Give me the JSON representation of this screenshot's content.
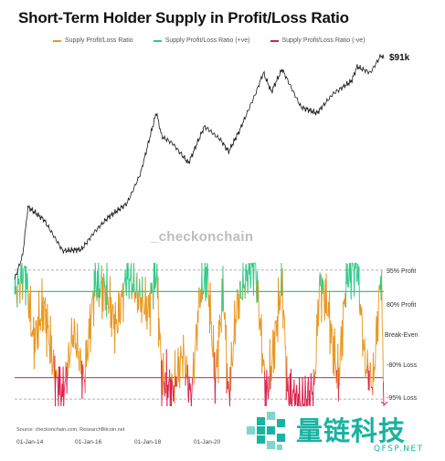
{
  "chart_data": {
    "type": "line",
    "title": "Short-Term Holder Supply in Profit/Loss Ratio",
    "legend": [
      {
        "name": "Supply Profit/Loss Ratio",
        "color": "#e8961e"
      },
      {
        "name": "Supply Profit/Loss Ratio (+ve)",
        "color": "#2ec987"
      },
      {
        "name": "Supply Profit/Loss Ratio (-ve)",
        "color": "#d81e4a"
      }
    ],
    "x_ticks": [
      "01-Jan-14",
      "01-Jan-16",
      "01-Jan-18",
      "01-Jan-20"
    ],
    "x_range": [
      "2013-07",
      "2025-01"
    ],
    "reference_lines": [
      {
        "label": "95% Profit",
        "value": 95,
        "style": "dashed"
      },
      {
        "label": "80% Profit",
        "value": 80,
        "style": "solid",
        "color": "#2ec987"
      },
      {
        "label": "Break-Even",
        "value": 50,
        "style": "none"
      },
      {
        "label": "-80% Loss",
        "value": 20,
        "style": "solid",
        "color": "#c8506e"
      },
      {
        "label": "-95% Loss",
        "value": 5,
        "style": "dashed"
      }
    ],
    "price_series": {
      "name": "Price",
      "label": "$91k",
      "note": "log-scale price, read visually",
      "x": [
        "2013-07",
        "2013-10",
        "2013-12",
        "2014-06",
        "2015-01",
        "2015-08",
        "2016-01",
        "2016-06",
        "2017-01",
        "2017-06",
        "2017-12",
        "2018-02",
        "2018-06",
        "2018-12",
        "2019-06",
        "2019-12",
        "2020-03",
        "2020-07",
        "2021-01",
        "2021-04",
        "2021-07",
        "2021-11",
        "2022-06",
        "2022-12",
        "2023-06",
        "2024-01",
        "2024-03",
        "2024-08",
        "2024-12",
        "2025-01"
      ],
      "values": [
        95,
        200,
        900,
        600,
        230,
        240,
        420,
        650,
        1000,
        2500,
        17000,
        8000,
        6500,
        3500,
        11000,
        7200,
        5000,
        9500,
        30000,
        58000,
        32000,
        65000,
        20000,
        16500,
        30000,
        45000,
        70000,
        58000,
        100000,
        91000
      ]
    },
    "ratio_series": {
      "name": "Supply Profit/Loss Ratio",
      "unit": "% of STH supply in profit",
      "x": [
        "2013-07",
        "2013-11",
        "2014-02",
        "2014-06",
        "2014-10",
        "2015-01",
        "2015-05",
        "2015-09",
        "2016-01",
        "2016-05",
        "2016-09",
        "2017-01",
        "2017-05",
        "2017-09",
        "2017-12",
        "2018-02",
        "2018-06",
        "2018-10",
        "2019-01",
        "2019-04",
        "2019-07",
        "2019-10",
        "2020-01",
        "2020-03",
        "2020-06",
        "2020-10",
        "2021-01",
        "2021-05",
        "2021-07",
        "2021-11",
        "2022-01",
        "2022-06",
        "2022-11",
        "2023-01",
        "2023-04",
        "2023-08",
        "2023-11",
        "2024-03",
        "2024-06",
        "2024-09",
        "2024-12",
        "2025-01"
      ],
      "values": [
        78,
        94,
        45,
        70,
        22,
        8,
        52,
        18,
        86,
        80,
        55,
        92,
        78,
        66,
        96,
        20,
        10,
        38,
        4,
        75,
        93,
        18,
        82,
        3,
        70,
        92,
        98,
        6,
        28,
        88,
        10,
        2,
        12,
        86,
        70,
        16,
        90,
        99,
        30,
        15,
        95,
        4
      ]
    }
  },
  "watermark": "_checkonchain",
  "source": "Source: checkonchain.com, ResearchBitcoin.net",
  "logo": {
    "chinese": "量链科技",
    "english": "QFSP.NET",
    "icon": "pixel-logo-icon"
  }
}
